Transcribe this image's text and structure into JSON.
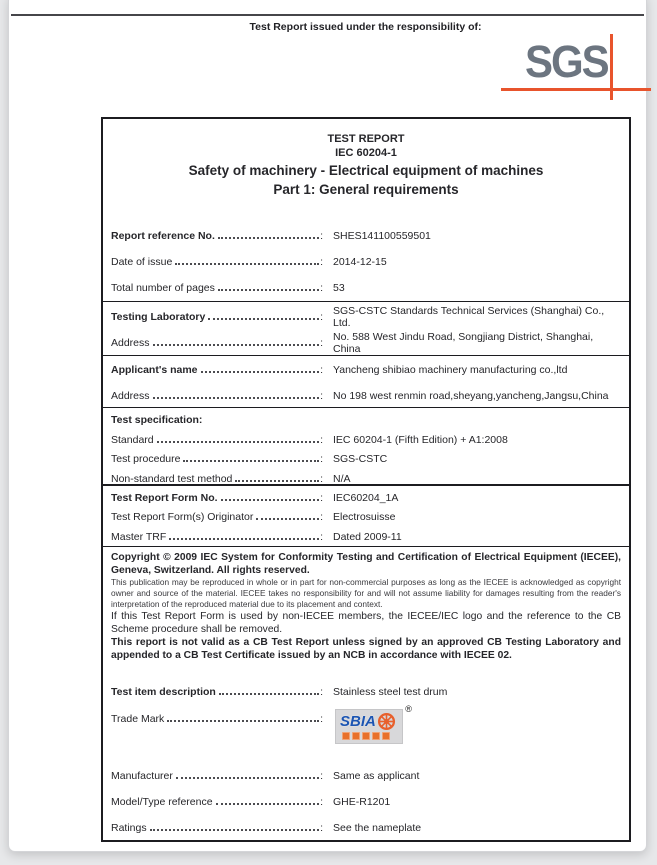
{
  "punctuation": {
    "colon": ":"
  },
  "header": {
    "issuer_line": "Test Report issued under the responsibility of:",
    "sgs_logo_text": "SGS",
    "accent_color": "#e8542c",
    "logo_gray": "#6c7580"
  },
  "title_block": {
    "line1": "TEST REPORT",
    "line2": "IEC 60204-1",
    "line3": "Safety of machinery - Electrical equipment of machines",
    "line4": "Part 1: General requirements"
  },
  "table_sections_top": [
    {
      "id": "refs",
      "rows": [
        {
          "label": "Report reference No.",
          "bold": true,
          "value": "SHES141100559501"
        },
        {
          "label": "Date of issue",
          "bold": false,
          "value": "2014-12-15"
        },
        {
          "label": "Total number of pages",
          "bold": false,
          "value": "53"
        }
      ]
    },
    {
      "id": "lab",
      "rows": [
        {
          "label": "Testing Laboratory",
          "bold": true,
          "value": "SGS-CSTC Standards Technical Services (Shanghai) Co., Ltd."
        },
        {
          "label": "Address",
          "bold": false,
          "value": "No. 588 West Jindu Road, Songjiang District, Shanghai, China"
        }
      ]
    },
    {
      "id": "app",
      "rows": [
        {
          "label": "Applicant's name",
          "bold": true,
          "value": "Yancheng shibiao machinery manufacturing co.,ltd"
        },
        {
          "label": "Address",
          "bold": false,
          "value": "No 198 west renmin road,sheyang,yancheng,Jangsu,China"
        }
      ]
    },
    {
      "id": "spec",
      "heading": "Test specification:",
      "compact": true,
      "rows": [
        {
          "label": "Standard",
          "bold": false,
          "value": "IEC 60204-1 (Fifth Edition) + A1:2008"
        },
        {
          "label": "Test procedure",
          "bold": false,
          "value": "SGS-CSTC"
        },
        {
          "label": "Non-standard test method",
          "bold": false,
          "value": "N/A"
        }
      ]
    },
    {
      "id": "form",
      "thick_top": true,
      "compact": true,
      "rows": [
        {
          "label": "Test Report Form No.",
          "bold": true,
          "value": "IEC60204_1A"
        },
        {
          "label": "Test Report Form(s) Originator",
          "bold": false,
          "value": "Electrosuisse"
        },
        {
          "label": "Master TRF",
          "bold": false,
          "value": "Dated 2009-11"
        }
      ]
    }
  ],
  "copyright": {
    "bold_intro": "Copyright © 2009 IEC System for Conformity Testing and Certification of Electrical Equipment (IECEE), Geneva, Switzerland. All rights reserved.",
    "fine_print": "This publication may be reproduced in whole or in part for non-commercial purposes as long as the IECEE is acknowledged as copyright owner and source of the material. IECEE takes no responsibility for and will not assume liability for damages resulting from the reader's interpretation of the reproduced material due to its placement and context.",
    "removal_note": "If this Test Report Form is used by non-IECEE members, the IECEE/IEC logo and the reference to the CB Scheme procedure shall be removed.",
    "bold_validity": "This report is not valid as a CB Test Report unless signed by an approved CB Testing Laboratory and appended to a CB Test Certificate issued by an NCB in accordance with IECEE 02."
  },
  "item_section": {
    "id": "item",
    "thick_top": true,
    "rows": [
      {
        "label": "Test item description",
        "bold": true,
        "value": "Stainless steel test drum"
      },
      {
        "label": "Trade Mark",
        "bold": false,
        "value": "",
        "logo": true
      },
      {
        "label": "Manufacturer",
        "bold": false,
        "value": "Same as applicant"
      },
      {
        "label": "Model/Type reference",
        "bold": false,
        "value": "GHE-R1201"
      },
      {
        "label": "Ratings",
        "bold": false,
        "value": "See the nameplate"
      }
    ],
    "trademark": {
      "text": "SBIA",
      "registered_mark": "®",
      "wheel_icon": "wheel-icon",
      "subtext_char_count": 5,
      "text_color": "#1c55b2",
      "wheel_color": "#e8602c"
    }
  }
}
